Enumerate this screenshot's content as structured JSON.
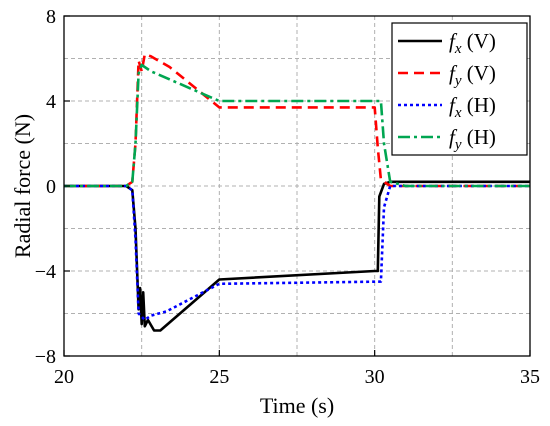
{
  "chart_data": {
    "type": "line",
    "xlabel": "Time (s)",
    "ylabel": "Radial force (N)",
    "xlim": [
      20,
      35
    ],
    "ylim": [
      -8,
      8
    ],
    "xticks": [
      20,
      25,
      30,
      35
    ],
    "yticks": [
      8,
      4,
      0,
      -4,
      -8
    ],
    "xtick_labels": [
      "20",
      "25",
      "30",
      "35"
    ],
    "ytick_labels": [
      "8",
      "4",
      "0",
      "−4",
      "−8"
    ],
    "grid": true,
    "legend_position": "top-right",
    "series": [
      {
        "name": "fx (V)",
        "legend": {
          "sym": "f",
          "sub": "x",
          "suffix": " (V)"
        },
        "color": "#000000",
        "dash": "solid",
        "points": [
          [
            20,
            0.0
          ],
          [
            22.0,
            0.0
          ],
          [
            22.2,
            -0.2
          ],
          [
            22.3,
            -2.0
          ],
          [
            22.4,
            -5.8
          ],
          [
            22.45,
            -4.8
          ],
          [
            22.5,
            -6.5
          ],
          [
            22.55,
            -5.0
          ],
          [
            22.6,
            -6.6
          ],
          [
            22.7,
            -6.3
          ],
          [
            22.9,
            -6.8
          ],
          [
            23.1,
            -6.8
          ],
          [
            25.0,
            -4.4
          ],
          [
            30.0,
            -4.0
          ],
          [
            30.1,
            -4.0
          ],
          [
            30.15,
            -0.5
          ],
          [
            30.3,
            0.1
          ],
          [
            30.5,
            0.2
          ],
          [
            35,
            0.2
          ]
        ]
      },
      {
        "name": "fy (V)",
        "legend": {
          "sym": "f",
          "sub": "y",
          "suffix": " (V)"
        },
        "color": "#ff0000",
        "dash": "10,6",
        "points": [
          [
            20,
            0.0
          ],
          [
            22.0,
            0.0
          ],
          [
            22.2,
            0.2
          ],
          [
            22.3,
            2.0
          ],
          [
            22.4,
            5.9
          ],
          [
            22.5,
            5.4
          ],
          [
            22.6,
            6.2
          ],
          [
            22.8,
            6.1
          ],
          [
            23.4,
            5.6
          ],
          [
            25.0,
            3.7
          ],
          [
            30.0,
            3.7
          ],
          [
            30.1,
            1.8
          ],
          [
            30.2,
            0.3
          ],
          [
            30.5,
            0.0
          ],
          [
            35,
            0.0
          ]
        ]
      },
      {
        "name": "fx (H)",
        "legend": {
          "sym": "f",
          "sub": "x",
          "suffix": " (H)"
        },
        "color": "#0000ff",
        "dash": "3,3",
        "points": [
          [
            20,
            0.0
          ],
          [
            22.0,
            0.0
          ],
          [
            22.2,
            -0.2
          ],
          [
            22.3,
            -2.5
          ],
          [
            22.4,
            -6.0
          ],
          [
            22.6,
            -6.3
          ],
          [
            22.8,
            -6.1
          ],
          [
            23.3,
            -5.9
          ],
          [
            25.0,
            -4.6
          ],
          [
            30.2,
            -4.5
          ],
          [
            30.3,
            -1.0
          ],
          [
            30.5,
            0.0
          ],
          [
            35,
            0.0
          ]
        ]
      },
      {
        "name": "fy (H)",
        "legend": {
          "sym": "f",
          "sub": "y",
          "suffix": " (H)"
        },
        "color": "#00a651",
        "dash": "12,4,3,4",
        "points": [
          [
            20,
            0.0
          ],
          [
            22.0,
            0.0
          ],
          [
            22.2,
            0.2
          ],
          [
            22.3,
            2.0
          ],
          [
            22.4,
            5.3
          ],
          [
            22.5,
            5.7
          ],
          [
            22.8,
            5.4
          ],
          [
            25.0,
            4.0
          ],
          [
            30.2,
            4.0
          ],
          [
            30.3,
            2.0
          ],
          [
            30.5,
            0.2
          ],
          [
            31.0,
            0.0
          ],
          [
            35,
            0.0
          ]
        ]
      }
    ]
  }
}
